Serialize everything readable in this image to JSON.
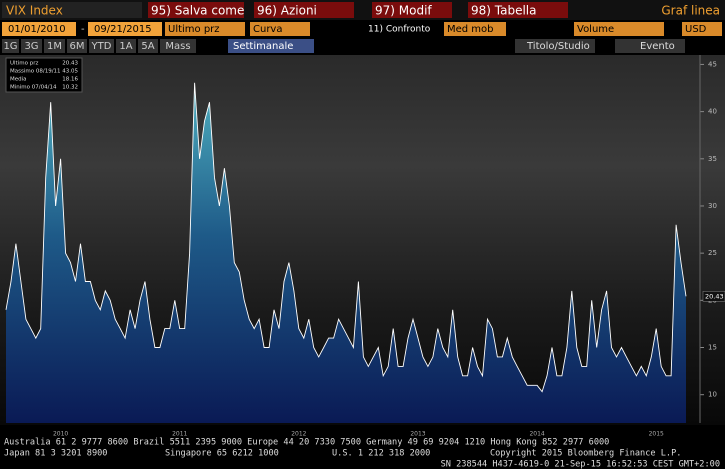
{
  "ui": {
    "top": {
      "ticker": "VIX Index",
      "buttons": [
        "95) Salva come",
        "96) Azioni",
        "97) Modif",
        "98) Tabella"
      ],
      "chart_kind": "Graf linea"
    },
    "row2": {
      "start": "01/01/2010",
      "dash": "-",
      "end": "09/21/2015",
      "field": "Ultimo prz",
      "style": "Curva",
      "compare": "11) Confronto",
      "mov": "Med mob",
      "volume": "Volume",
      "currency": "USD"
    },
    "row3": {
      "periods": [
        "1G",
        "3G",
        "1M",
        "6M",
        "YTD",
        "1A",
        "5A",
        "Mass"
      ],
      "freq": "Settimanale",
      "study": "Titolo/Studio",
      "event": "Evento"
    },
    "footer": {
      "line1": "Australia 61 2 9777 8600 Brazil 5511 2395 9000 Europe 44 20 7330 7500 Germany 49 69 9204 1210 Hong Kong 852 2977 6000",
      "line2": [
        "Japan 81 3 3201 8900",
        "Singapore 65 6212 1000",
        "U.S. 1 212 318 2000",
        "Copyright 2015 Bloomberg Finance L.P."
      ],
      "line3": "SN 238544 H437-4619-0 21-Sep-15 16:52:53 CEST GMT+2:00"
    }
  },
  "chart_data": {
    "type": "area",
    "categories": [
      null,
      null,
      null,
      null,
      null,
      null,
      null,
      null,
      null,
      null,
      null,
      "2010",
      null,
      null,
      null,
      null,
      null,
      null,
      null,
      null,
      null,
      null,
      null,
      null,
      null,
      null,
      null,
      null,
      null,
      null,
      null,
      null,
      null,
      null,
      null,
      "2011",
      null,
      null,
      null,
      null,
      null,
      null,
      null,
      null,
      null,
      null,
      null,
      null,
      null,
      null,
      null,
      null,
      null,
      null,
      null,
      null,
      null,
      null,
      null,
      "2012",
      null,
      null,
      null,
      null,
      null,
      null,
      null,
      null,
      null,
      null,
      null,
      null,
      null,
      null,
      null,
      null,
      null,
      null,
      null,
      null,
      null,
      null,
      null,
      "2013",
      null,
      null,
      null,
      null,
      null,
      null,
      null,
      null,
      null,
      null,
      null,
      null,
      null,
      null,
      null,
      null,
      null,
      null,
      null,
      null,
      null,
      null,
      null,
      "2014",
      null,
      null,
      null,
      null,
      null,
      null,
      null,
      null,
      null,
      null,
      null,
      null,
      null,
      null,
      null,
      null,
      null,
      null,
      null,
      null,
      null,
      null,
      null,
      "2015",
      null,
      null,
      null,
      null,
      null,
      null
    ],
    "series": [
      {
        "name": "Ultimo prz",
        "color": "#ffffff",
        "values": [
          19,
          22,
          26,
          22,
          18,
          17,
          16,
          17,
          33,
          41,
          30,
          35,
          25,
          24,
          22,
          26,
          22,
          22,
          20,
          19,
          21,
          20,
          18,
          17,
          16,
          19,
          17,
          20,
          22,
          18,
          15,
          15,
          17,
          17,
          20,
          17,
          17,
          25,
          43.05,
          35,
          39,
          41,
          33,
          30,
          34,
          30,
          24,
          23,
          20,
          18,
          17,
          18,
          15,
          15,
          19,
          17,
          22,
          24,
          21,
          17,
          16,
          18,
          15,
          14,
          15,
          16,
          16,
          18,
          17,
          16,
          15,
          22,
          14,
          13,
          14,
          15,
          12,
          13,
          17,
          13,
          13,
          16,
          18,
          16,
          14,
          13,
          14,
          17,
          15,
          14,
          19,
          14,
          12,
          12,
          15,
          13,
          12,
          18,
          17,
          14,
          14,
          16,
          14,
          13,
          12,
          11,
          11,
          11,
          10.32,
          12,
          15,
          12,
          12,
          15,
          21,
          15,
          13,
          13,
          20,
          15,
          19,
          21,
          15,
          14,
          15,
          14,
          13,
          12,
          13,
          12,
          14,
          17,
          13,
          12,
          12,
          28,
          24,
          20.43
        ]
      }
    ],
    "stats": {
      "high_label": "Massimo 08/19/11",
      "high": 43.05,
      "mean_label": "Media",
      "mean": 18.16,
      "low_label": "Minimo 07/04/14",
      "low": 10.32
    },
    "ylim": [
      7,
      46
    ],
    "yticks": [
      10,
      15,
      20,
      25,
      30,
      35,
      40,
      45
    ],
    "grid": false
  }
}
